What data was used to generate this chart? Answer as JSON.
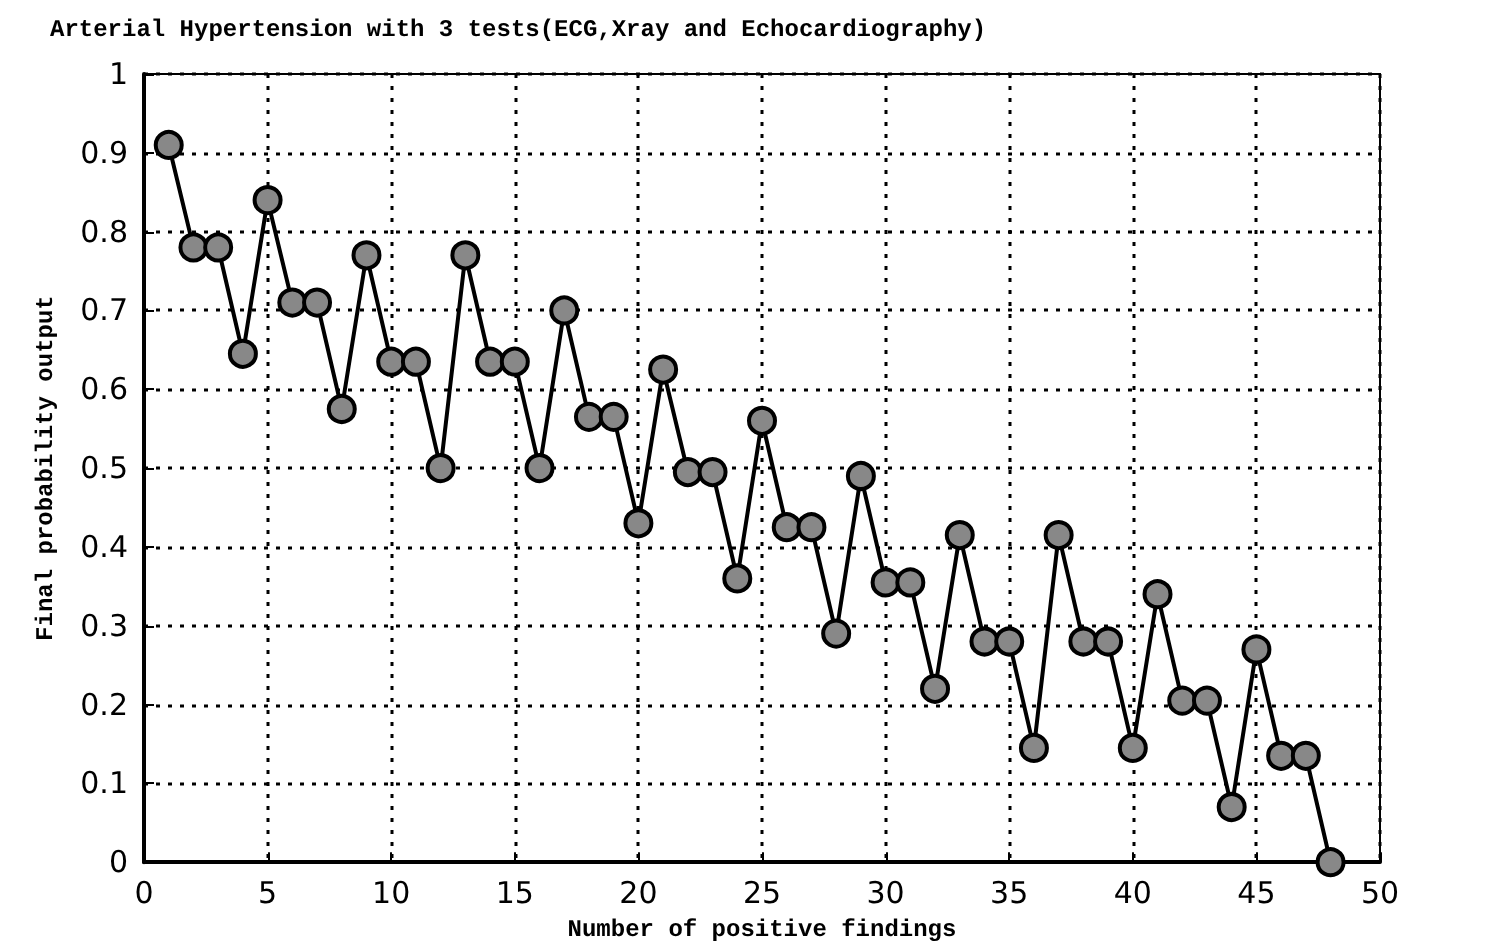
{
  "chart_data": {
    "type": "line",
    "title": "Arterial Hypertension with 3 tests(ECG,Xray and Echocardiography)",
    "xlabel": "Number of positive findings",
    "ylabel": "Final probability output",
    "x": [
      1,
      2,
      3,
      4,
      5,
      6,
      7,
      8,
      9,
      10,
      11,
      12,
      13,
      14,
      15,
      16,
      17,
      18,
      19,
      20,
      21,
      22,
      23,
      24,
      25,
      26,
      27,
      28,
      29,
      30,
      31,
      32,
      33,
      34,
      35,
      36,
      37,
      38,
      39,
      40,
      41,
      42,
      43,
      44,
      45,
      46,
      47,
      48
    ],
    "series": [
      {
        "color": "#000000",
        "values": [
          0.91,
          0.78,
          0.78,
          0.645,
          0.84,
          0.71,
          0.71,
          0.575,
          0.77,
          0.635,
          0.635,
          0.5,
          0.77,
          0.635,
          0.635,
          0.5,
          0.7,
          0.565,
          0.565,
          0.43,
          0.625,
          0.495,
          0.495,
          0.36,
          0.56,
          0.425,
          0.425,
          0.29,
          0.49,
          0.355,
          0.355,
          0.22,
          0.415,
          0.28,
          0.28,
          0.145,
          0.415,
          0.28,
          0.28,
          0.145,
          0.34,
          0.205,
          0.205,
          0.07,
          0.27,
          0.135,
          0.135,
          0
        ]
      }
    ],
    "xlim": [
      0,
      50
    ],
    "xticks": [
      0,
      5,
      10,
      15,
      20,
      25,
      30,
      35,
      40,
      45,
      50
    ],
    "ylim": [
      0,
      1
    ],
    "yticks": [
      0,
      0.1,
      0.2,
      0.3,
      0.4,
      0.5,
      0.6,
      0.7,
      0.8,
      0.9,
      1
    ],
    "grid": true,
    "marker": "circle",
    "line_style": "solid"
  }
}
